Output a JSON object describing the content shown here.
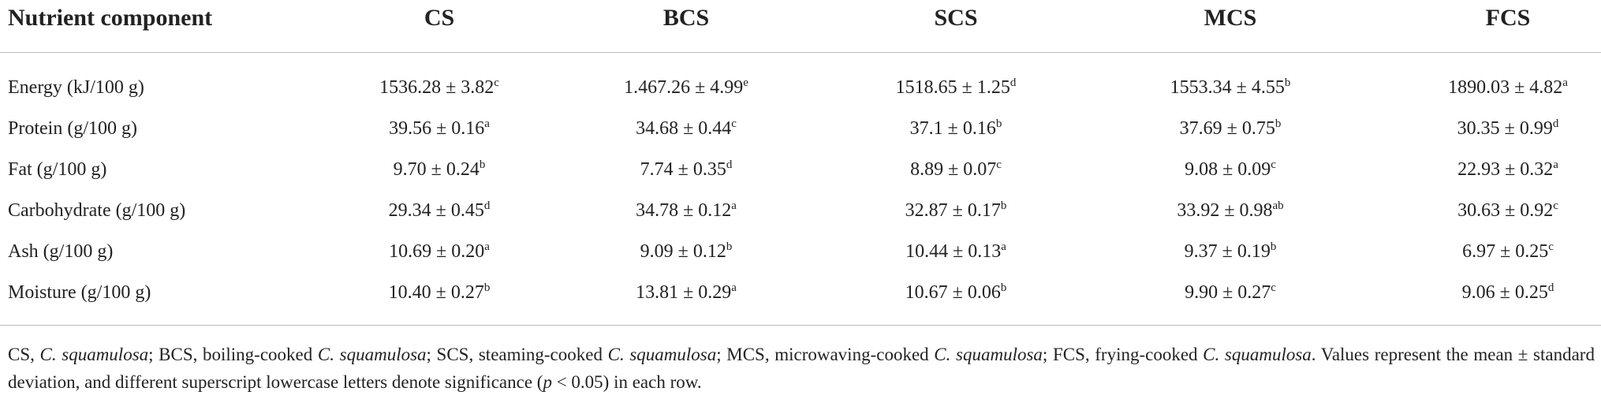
{
  "table": {
    "header": [
      "Nutrient component",
      "CS",
      "BCS",
      "SCS",
      "MCS",
      "FCS"
    ],
    "rows": [
      {
        "label": "Energy (kJ/100 g)",
        "cells": [
          {
            "text": "1536.28 ± 3.82",
            "sup": "c"
          },
          {
            "text": "1.467.26 ± 4.99",
            "sup": "e"
          },
          {
            "text": "1518.65 ± 1.25",
            "sup": "d"
          },
          {
            "text": "1553.34 ± 4.55",
            "sup": "b"
          },
          {
            "text": "1890.03 ± 4.82",
            "sup": "a"
          }
        ]
      },
      {
        "label": "Protein (g/100 g)",
        "cells": [
          {
            "text": "39.56 ± 0.16",
            "sup": "a"
          },
          {
            "text": "34.68 ± 0.44",
            "sup": "c"
          },
          {
            "text": "37.1 ± 0.16",
            "sup": "b"
          },
          {
            "text": "37.69 ± 0.75",
            "sup": "b"
          },
          {
            "text": "30.35 ± 0.99",
            "sup": "d"
          }
        ]
      },
      {
        "label": "Fat (g/100 g)",
        "cells": [
          {
            "text": "9.70 ± 0.24",
            "sup": "b"
          },
          {
            "text": "7.74 ± 0.35",
            "sup": "d"
          },
          {
            "text": "8.89 ± 0.07",
            "sup": "c"
          },
          {
            "text": "9.08 ± 0.09",
            "sup": "c"
          },
          {
            "text": "22.93 ± 0.32",
            "sup": "a"
          }
        ]
      },
      {
        "label": "Carbohydrate (g/100 g)",
        "cells": [
          {
            "text": "29.34 ± 0.45",
            "sup": "d"
          },
          {
            "text": "34.78 ± 0.12",
            "sup": "a"
          },
          {
            "text": "32.87 ± 0.17",
            "sup": "b"
          },
          {
            "text": "33.92 ± 0.98",
            "sup": "ab"
          },
          {
            "text": "30.63 ± 0.92",
            "sup": "c"
          }
        ]
      },
      {
        "label": "Ash (g/100 g)",
        "cells": [
          {
            "text": "10.69 ± 0.20",
            "sup": "a"
          },
          {
            "text": "9.09 ± 0.12",
            "sup": "b"
          },
          {
            "text": "10.44 ± 0.13",
            "sup": "a"
          },
          {
            "text": "9.37 ± 0.19",
            "sup": "b"
          },
          {
            "text": "6.97 ± 0.25",
            "sup": "c"
          }
        ]
      },
      {
        "label": "Moisture (g/100 g)",
        "cells": [
          {
            "text": "10.40 ± 0.27",
            "sup": "b"
          },
          {
            "text": "13.81 ± 0.29",
            "sup": "a"
          },
          {
            "text": "10.67 ± 0.06",
            "sup": "b"
          },
          {
            "text": "9.90 ± 0.27",
            "sup": "c"
          },
          {
            "text": "9.06 ± 0.25",
            "sup": "d"
          }
        ]
      }
    ]
  },
  "footnote": [
    {
      "text": "CS, ",
      "italic": false
    },
    {
      "text": "C. squamulosa",
      "italic": true
    },
    {
      "text": "; BCS, boiling-cooked ",
      "italic": false
    },
    {
      "text": "C. squamulosa",
      "italic": true
    },
    {
      "text": "; SCS, steaming-cooked ",
      "italic": false
    },
    {
      "text": "C. squamulosa",
      "italic": true
    },
    {
      "text": "; MCS, microwaving-cooked ",
      "italic": false
    },
    {
      "text": "C. squamulosa",
      "italic": true
    },
    {
      "text": "; FCS, frying-cooked ",
      "italic": false
    },
    {
      "text": "C. squamulosa",
      "italic": true
    },
    {
      "text": ". Values represent the mean ± standard deviation, and different superscript lowercase letters denote significance (",
      "italic": false
    },
    {
      "text": "p",
      "italic": true
    },
    {
      "text": " < 0.05) in each row.",
      "italic": false
    }
  ]
}
